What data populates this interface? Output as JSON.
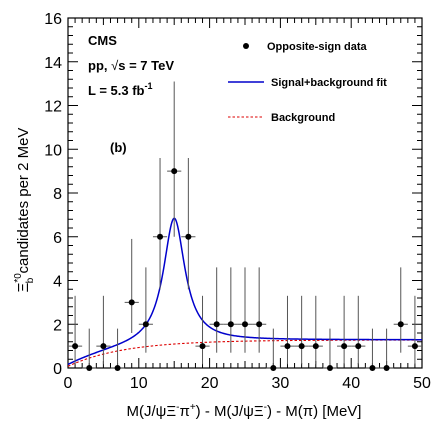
{
  "chart_data": {
    "type": "scatter",
    "xlabel": "M(J/ψΞ⁻π⁺) - M(J/ψΞ⁻) - M(π) [MeV]",
    "ylabel": "Ξᵇ⁰ candidates per 2 MeV",
    "xlim": [
      0,
      50
    ],
    "ylim": [
      0,
      16
    ],
    "x_ticks": [
      0,
      10,
      20,
      30,
      40,
      50
    ],
    "y_ticks": [
      0,
      2,
      4,
      6,
      8,
      10,
      12,
      14,
      16
    ],
    "annotations": {
      "experiment": "CMS",
      "energy": "pp, √s = 7 TeV",
      "lumi": "L = 5.3 fb⁻¹",
      "panel": "(b)"
    },
    "legend": {
      "placement": "top-right",
      "entries": [
        "Opposite-sign data",
        "Signal+background fit",
        "Background"
      ]
    },
    "colors": {
      "data": "#000000",
      "fit": "#0000cc",
      "background": "#dd0000"
    },
    "series": [
      {
        "name": "Opposite-sign data",
        "points": [
          {
            "x": 1,
            "y": 1,
            "lo": 0.17,
            "hi": 3.3
          },
          {
            "x": 3,
            "y": 0,
            "lo": 0,
            "hi": 1.8
          },
          {
            "x": 5,
            "y": 1,
            "lo": 0.17,
            "hi": 3.3
          },
          {
            "x": 7,
            "y": 0,
            "lo": 0,
            "hi": 1.8
          },
          {
            "x": 9,
            "y": 3,
            "lo": 1.6,
            "hi": 5.9
          },
          {
            "x": 11,
            "y": 2,
            "lo": 0.7,
            "hi": 4.6
          },
          {
            "x": 13,
            "y": 6,
            "lo": 3.6,
            "hi": 9.6
          },
          {
            "x": 15,
            "y": 9,
            "lo": 6.0,
            "hi": 13.1
          },
          {
            "x": 17,
            "y": 6,
            "lo": 3.6,
            "hi": 9.6
          },
          {
            "x": 19,
            "y": 1,
            "lo": 0.17,
            "hi": 3.3
          },
          {
            "x": 21,
            "y": 2,
            "lo": 0.7,
            "hi": 4.6
          },
          {
            "x": 23,
            "y": 2,
            "lo": 0.7,
            "hi": 4.6
          },
          {
            "x": 25,
            "y": 2,
            "lo": 0.7,
            "hi": 4.6
          },
          {
            "x": 27,
            "y": 2,
            "lo": 0.7,
            "hi": 4.6
          },
          {
            "x": 29,
            "y": 0,
            "lo": 0,
            "hi": 1.8
          },
          {
            "x": 31,
            "y": 1,
            "lo": 0.17,
            "hi": 3.3
          },
          {
            "x": 33,
            "y": 1,
            "lo": 0.17,
            "hi": 3.3
          },
          {
            "x": 35,
            "y": 1,
            "lo": 0.17,
            "hi": 3.3
          },
          {
            "x": 37,
            "y": 0,
            "lo": 0,
            "hi": 1.8
          },
          {
            "x": 39,
            "y": 1,
            "lo": 0.17,
            "hi": 3.3
          },
          {
            "x": 41,
            "y": 1,
            "lo": 0.17,
            "hi": 3.3
          },
          {
            "x": 43,
            "y": 0,
            "lo": 0,
            "hi": 1.8
          },
          {
            "x": 45,
            "y": 0,
            "lo": 0,
            "hi": 1.8
          },
          {
            "x": 47,
            "y": 2,
            "lo": 0.7,
            "hi": 4.6
          },
          {
            "x": 49,
            "y": 1,
            "lo": 0.17,
            "hi": 3.3
          }
        ]
      },
      {
        "name": "Signal+background fit",
        "model": {
          "peak_x": 15.0,
          "peak_height": 5.75,
          "gamma": 1.85,
          "bg_scale": 1.28,
          "bg_threshold": -0.5,
          "bg_width": 8.0
        }
      },
      {
        "name": "Background",
        "model": {
          "bg_scale": 1.28,
          "bg_threshold": -0.5,
          "bg_width": 8.0
        }
      }
    ]
  }
}
